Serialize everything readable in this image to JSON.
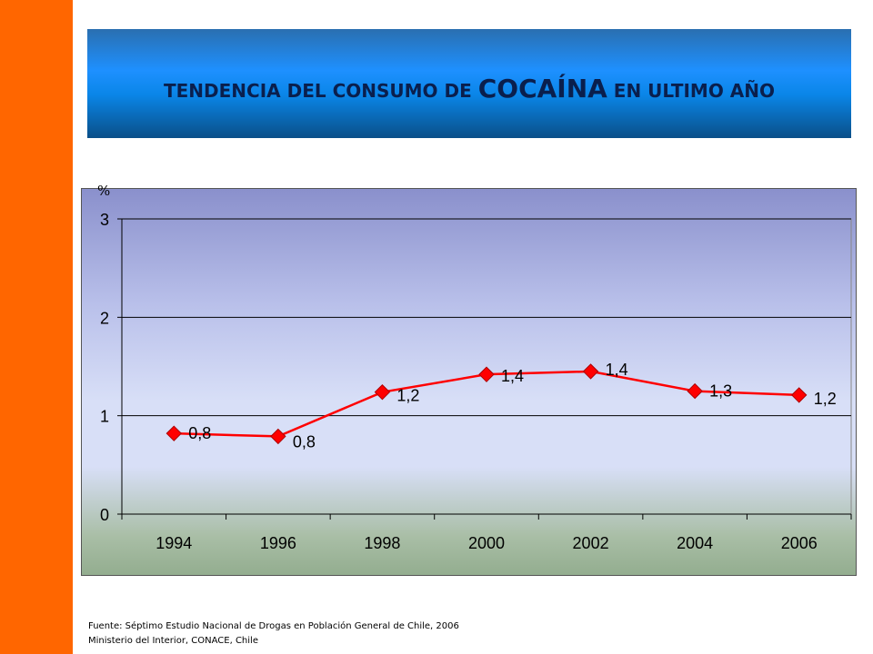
{
  "title": {
    "part1": "TENDENCIA DEL CONSUMO DE ",
    "part2": "COCAÍNA",
    "part3": " EN ULTIMO AÑO"
  },
  "colors": {
    "side_bar": "#ff6600",
    "series_line": "#ff0000",
    "marker": "#ff0000"
  },
  "chart_data": {
    "type": "line",
    "ylabel": "%",
    "xlabel": "",
    "categories": [
      "1994",
      "1996",
      "1998",
      "2000",
      "2002",
      "2004",
      "2006"
    ],
    "series": [
      {
        "values": [
          0.82,
          0.79,
          1.24,
          1.42,
          1.45,
          1.25,
          1.21
        ],
        "data_labels": [
          "0,8",
          "0,8",
          "1,2",
          "1,4",
          "1,4",
          "1,3",
          "1,2"
        ]
      }
    ],
    "ylim": [
      0,
      3
    ],
    "yticks": [
      "0",
      "1",
      "2",
      "3"
    ],
    "grid": true,
    "legend": "none"
  },
  "footer": {
    "line1": "Fuente: Séptimo Estudio Nacional de Drogas en Población General de Chile, 2006",
    "line2": "Ministerio del Interior, CONACE, Chile"
  }
}
